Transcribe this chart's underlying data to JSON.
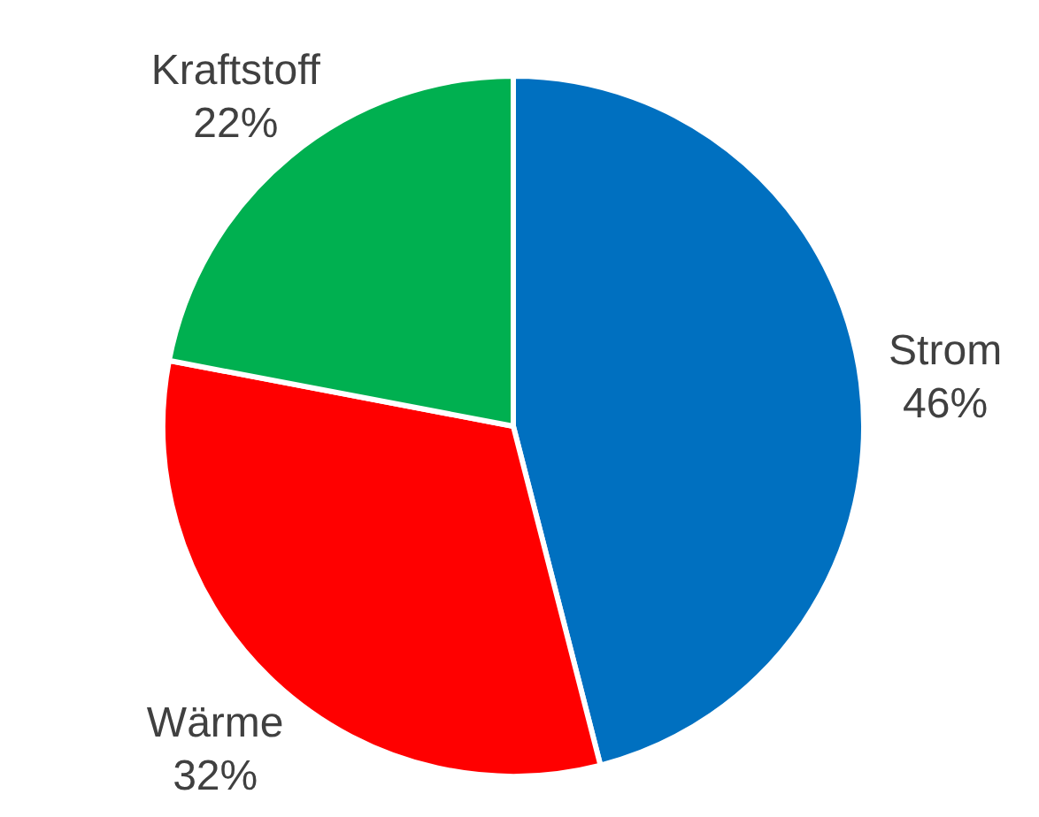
{
  "chart_data": {
    "type": "pie",
    "categories": [
      "Strom",
      "Wärme",
      "Kraftstoff"
    ],
    "values": [
      46,
      32,
      22
    ],
    "colors": [
      "#0070c0",
      "#ff0000",
      "#00b050"
    ],
    "value_labels": [
      "46%",
      "32%",
      "22%"
    ]
  }
}
